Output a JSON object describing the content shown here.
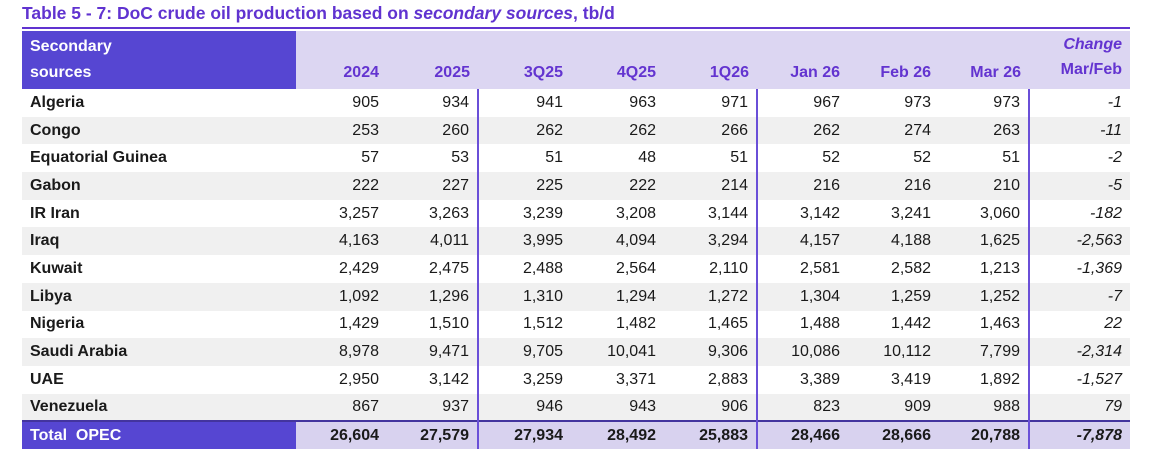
{
  "title": {
    "prefix": "Table 5 - 7: DoC crude oil production based on ",
    "italic": "secondary sources",
    "suffix": ", tb/d"
  },
  "table": {
    "header": {
      "label_line1": "Secondary",
      "label_line2": "sources",
      "columns": [
        "2024",
        "2025",
        "3Q25",
        "4Q25",
        "1Q26",
        "Jan 26",
        "Feb 26",
        "Mar 26"
      ],
      "change_line1": "Change",
      "change_line2": "Mar/Feb"
    },
    "rows": [
      {
        "country": "Algeria",
        "values": [
          "905",
          "934",
          "941",
          "963",
          "971",
          "967",
          "973",
          "973"
        ],
        "change": "-1"
      },
      {
        "country": "Congo",
        "values": [
          "253",
          "260",
          "262",
          "262",
          "266",
          "262",
          "274",
          "263"
        ],
        "change": "-11"
      },
      {
        "country": "Equatorial Guinea",
        "values": [
          "57",
          "53",
          "51",
          "48",
          "51",
          "52",
          "52",
          "51"
        ],
        "change": "-2"
      },
      {
        "country": "Gabon",
        "values": [
          "222",
          "227",
          "225",
          "222",
          "214",
          "216",
          "216",
          "210"
        ],
        "change": "-5"
      },
      {
        "country": "IR Iran",
        "values": [
          "3,257",
          "3,263",
          "3,239",
          "3,208",
          "3,144",
          "3,142",
          "3,241",
          "3,060"
        ],
        "change": "-182"
      },
      {
        "country": "Iraq",
        "values": [
          "4,163",
          "4,011",
          "3,995",
          "4,094",
          "3,294",
          "4,157",
          "4,188",
          "1,625"
        ],
        "change": "-2,563"
      },
      {
        "country": "Kuwait",
        "values": [
          "2,429",
          "2,475",
          "2,488",
          "2,564",
          "2,110",
          "2,581",
          "2,582",
          "1,213"
        ],
        "change": "-1,369"
      },
      {
        "country": "Libya",
        "values": [
          "1,092",
          "1,296",
          "1,310",
          "1,294",
          "1,272",
          "1,304",
          "1,259",
          "1,252"
        ],
        "change": "-7"
      },
      {
        "country": "Nigeria",
        "values": [
          "1,429",
          "1,510",
          "1,512",
          "1,482",
          "1,465",
          "1,488",
          "1,442",
          "1,463"
        ],
        "change": "22"
      },
      {
        "country": "Saudi Arabia",
        "values": [
          "8,978",
          "9,471",
          "9,705",
          "10,041",
          "9,306",
          "10,086",
          "10,112",
          "7,799"
        ],
        "change": "-2,314"
      },
      {
        "country": "UAE",
        "values": [
          "2,950",
          "3,142",
          "3,259",
          "3,371",
          "2,883",
          "3,389",
          "3,419",
          "1,892"
        ],
        "change": "-1,527"
      },
      {
        "country": "Venezuela",
        "values": [
          "867",
          "937",
          "946",
          "943",
          "906",
          "823",
          "909",
          "988"
        ],
        "change": "79"
      }
    ],
    "total": {
      "label": "Total  OPEC",
      "values": [
        "26,604",
        "27,579",
        "27,934",
        "28,492",
        "25,883",
        "28,466",
        "28,666",
        "20,788"
      ],
      "change": "-7,878"
    }
  },
  "colors": {
    "accent_violet": "#6033d0",
    "header_dark_bg": "#5646d2",
    "header_light_bg": "#dcd6f2",
    "total_row_bg": "#d8d2ef",
    "separator": "#6a4fd8",
    "row_stripe": "#f0f0f0",
    "body_text": "#1a1a1a"
  }
}
